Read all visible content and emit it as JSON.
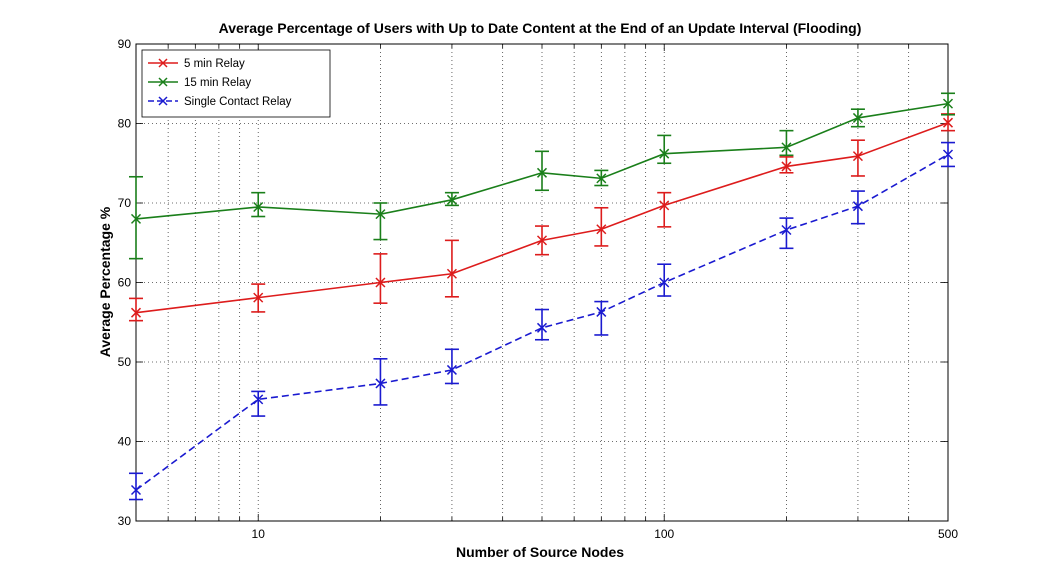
{
  "chart_data": {
    "type": "line",
    "title": "Average Percentage of Users with Up to Date Content at the End of an Update Interval (Flooding)",
    "xlabel": "Number of Source Nodes",
    "ylabel": "Average Percentage %",
    "xscale": "log",
    "xlim": [
      5,
      500
    ],
    "ylim": [
      30,
      90
    ],
    "x_ticks": [
      10,
      100,
      500
    ],
    "x_tick_labels": [
      "10",
      "100",
      "500"
    ],
    "y_ticks": [
      30,
      40,
      50,
      60,
      70,
      80,
      90
    ],
    "y_tick_labels": [
      "30",
      "40",
      "50",
      "60",
      "70",
      "80",
      "90"
    ],
    "grid": true,
    "legend_position": "top-left",
    "series": [
      {
        "name": "5 min Relay",
        "color": "#dd1c1c",
        "dashed": false,
        "marker": "x",
        "points": [
          {
            "x": 5,
            "y": 56.2,
            "lo": 55.2,
            "hi": 58.0
          },
          {
            "x": 10,
            "y": 58.1,
            "lo": 56.3,
            "hi": 59.8
          },
          {
            "x": 20,
            "y": 60.0,
            "lo": 57.4,
            "hi": 63.6
          },
          {
            "x": 30,
            "y": 61.1,
            "lo": 58.2,
            "hi": 65.3
          },
          {
            "x": 50,
            "y": 65.3,
            "lo": 63.5,
            "hi": 67.1
          },
          {
            "x": 70,
            "y": 66.7,
            "lo": 64.6,
            "hi": 69.4
          },
          {
            "x": 100,
            "y": 69.7,
            "lo": 67.0,
            "hi": 71.3
          },
          {
            "x": 200,
            "y": 74.6,
            "lo": 73.8,
            "hi": 75.8
          },
          {
            "x": 300,
            "y": 75.9,
            "lo": 73.4,
            "hi": 77.9
          },
          {
            "x": 500,
            "y": 80.1,
            "lo": 79.1,
            "hi": 81.2
          }
        ]
      },
      {
        "name": "15 min Relay",
        "color": "#1a7f1a",
        "dashed": false,
        "marker": "x",
        "points": [
          {
            "x": 5,
            "y": 68.0,
            "lo": 63.0,
            "hi": 73.3
          },
          {
            "x": 10,
            "y": 69.5,
            "lo": 68.3,
            "hi": 71.3
          },
          {
            "x": 20,
            "y": 68.6,
            "lo": 65.4,
            "hi": 70.0
          },
          {
            "x": 30,
            "y": 70.4,
            "lo": 69.7,
            "hi": 71.3
          },
          {
            "x": 50,
            "y": 73.8,
            "lo": 71.6,
            "hi": 76.5
          },
          {
            "x": 70,
            "y": 73.1,
            "lo": 72.2,
            "hi": 74.1
          },
          {
            "x": 100,
            "y": 76.2,
            "lo": 75.0,
            "hi": 78.5
          },
          {
            "x": 200,
            "y": 77.0,
            "lo": 76.0,
            "hi": 79.1
          },
          {
            "x": 300,
            "y": 80.7,
            "lo": 79.6,
            "hi": 81.8
          },
          {
            "x": 500,
            "y": 82.5,
            "lo": 81.1,
            "hi": 83.8
          }
        ]
      },
      {
        "name": "Single Contact Relay",
        "color": "#1a1ad0",
        "dashed": true,
        "marker": "x",
        "points": [
          {
            "x": 5,
            "y": 33.9,
            "lo": 32.7,
            "hi": 36.0
          },
          {
            "x": 10,
            "y": 45.3,
            "lo": 43.2,
            "hi": 46.3
          },
          {
            "x": 20,
            "y": 47.3,
            "lo": 44.6,
            "hi": 50.4
          },
          {
            "x": 30,
            "y": 49.0,
            "lo": 47.3,
            "hi": 51.6
          },
          {
            "x": 50,
            "y": 54.3,
            "lo": 52.8,
            "hi": 56.6
          },
          {
            "x": 70,
            "y": 56.3,
            "lo": 53.4,
            "hi": 57.6
          },
          {
            "x": 100,
            "y": 60.0,
            "lo": 58.3,
            "hi": 62.3
          },
          {
            "x": 200,
            "y": 66.6,
            "lo": 64.3,
            "hi": 68.1
          },
          {
            "x": 300,
            "y": 69.6,
            "lo": 67.4,
            "hi": 71.5
          },
          {
            "x": 500,
            "y": 76.1,
            "lo": 74.6,
            "hi": 77.6
          }
        ]
      }
    ]
  }
}
